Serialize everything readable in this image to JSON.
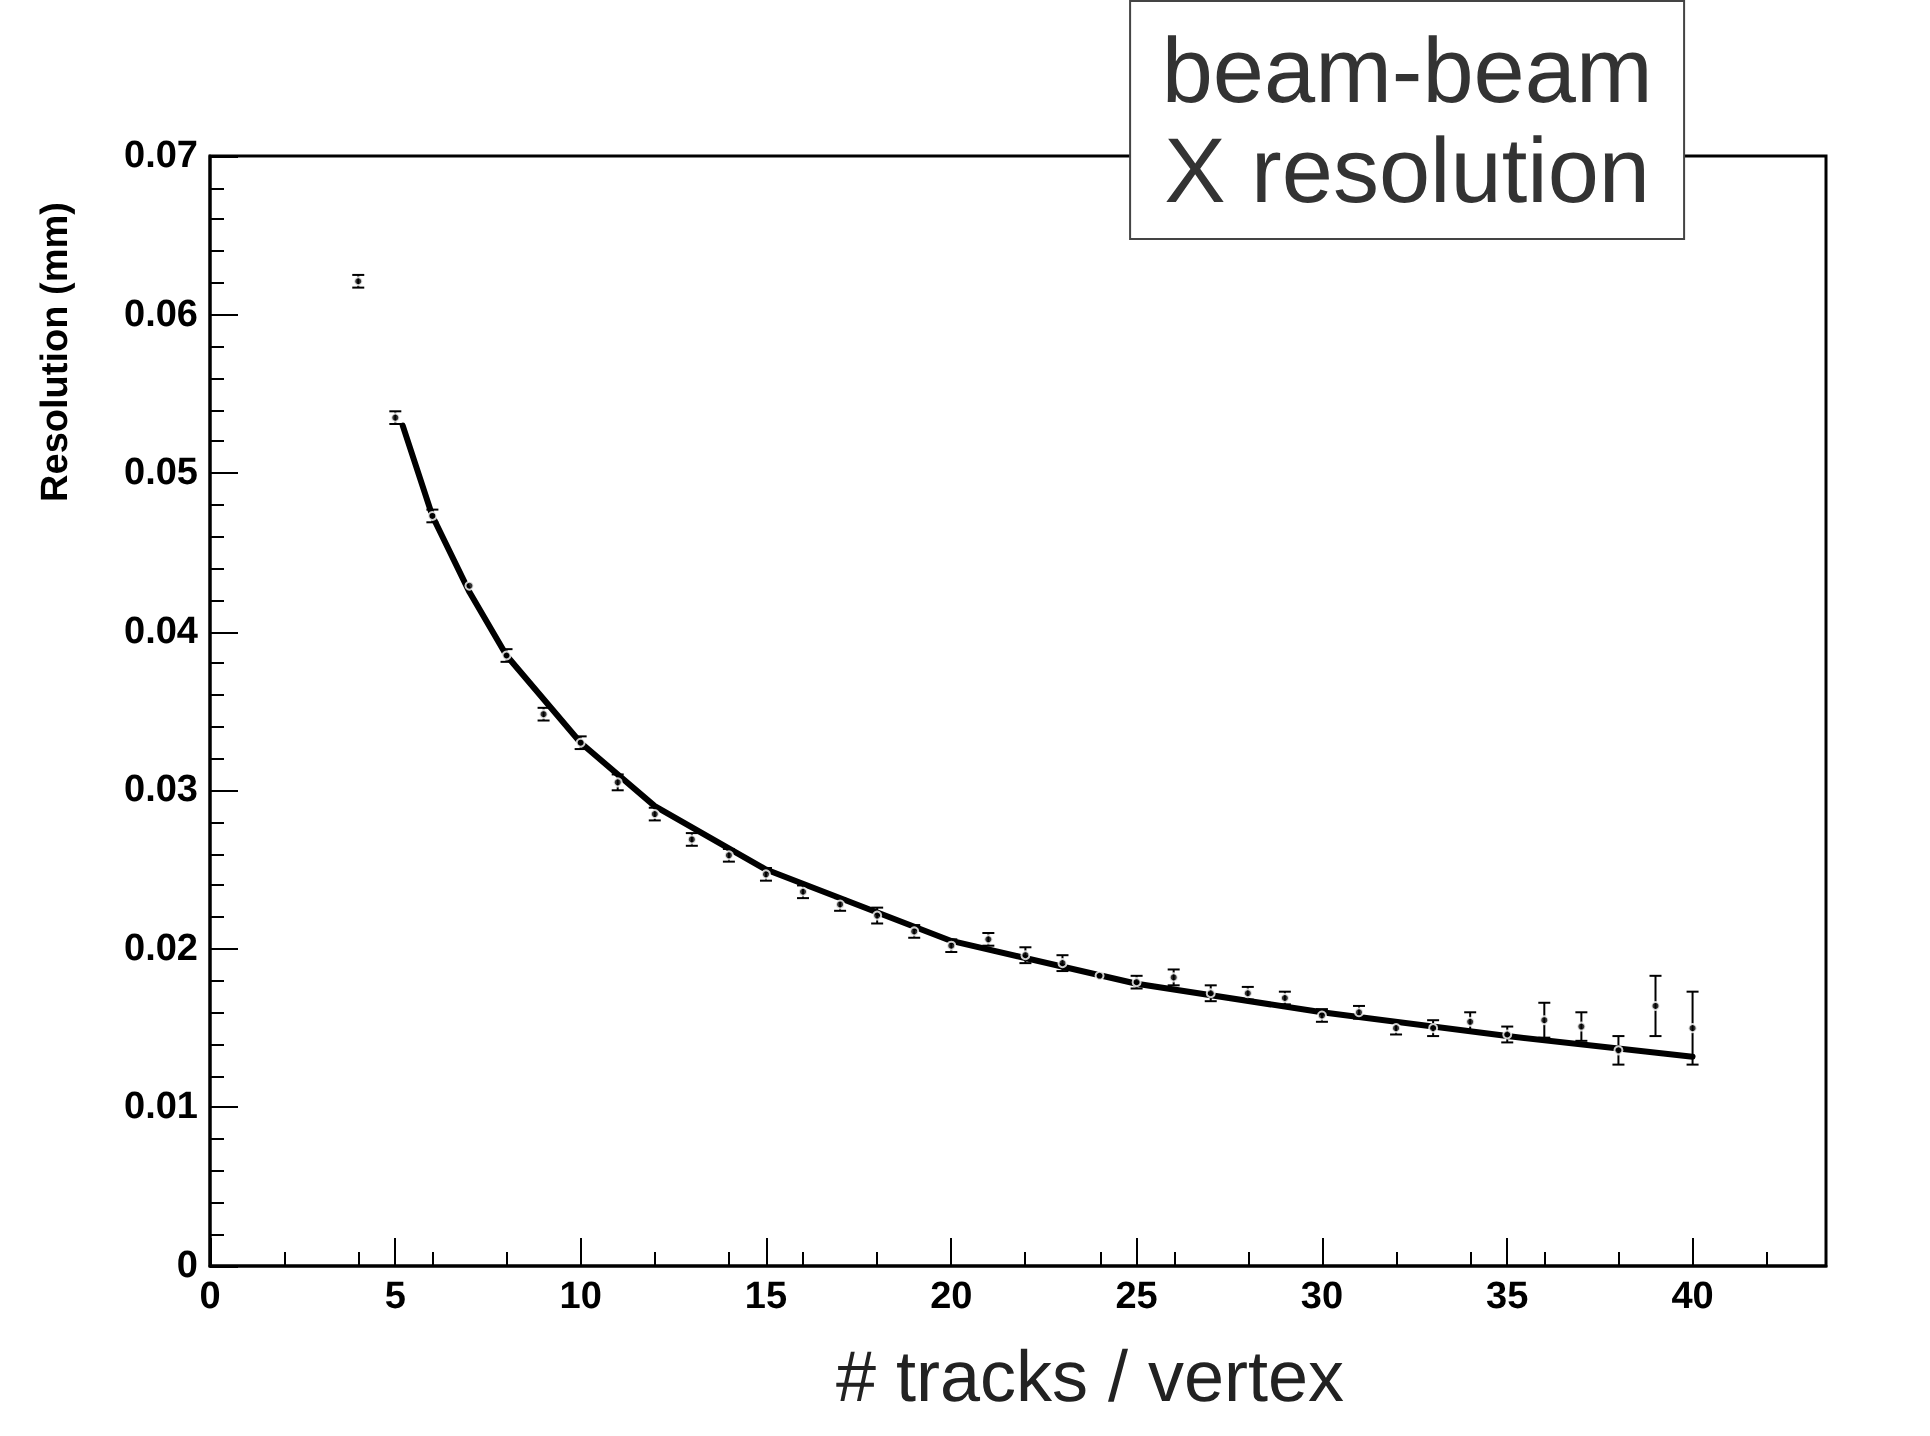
{
  "chart_data": {
    "type": "scatter",
    "title": "beam-beam\nX resolution",
    "xlabel": "# tracks / vertex",
    "ylabel": "Resolution (mm)",
    "xlim": [
      0,
      43.6
    ],
    "xticks": [
      0,
      5,
      10,
      15,
      20,
      25,
      30,
      35,
      40
    ],
    "ylim": [
      0,
      0.07
    ],
    "yticks": [
      0,
      0.01,
      0.02,
      0.03,
      0.04,
      0.05,
      0.06,
      0.07
    ],
    "grid": false,
    "marker": "circle",
    "series": [
      {
        "color": "#000000",
        "x": [
          4,
          5,
          6,
          7,
          8,
          9,
          10,
          11,
          12,
          13,
          14,
          15,
          16,
          17,
          18,
          19,
          20,
          21,
          22,
          23,
          24,
          25,
          26,
          27,
          28,
          29,
          30,
          31,
          32,
          33,
          34,
          35,
          36,
          37,
          38,
          39,
          40
        ],
        "values": [
          0.0621,
          0.0535,
          0.0473,
          0.0429,
          0.0385,
          0.0348,
          0.033,
          0.0305,
          0.0285,
          0.0269,
          0.0259,
          0.0247,
          0.0236,
          0.0228,
          0.0221,
          0.0211,
          0.0202,
          0.0206,
          0.0196,
          0.0191,
          0.0183,
          0.0179,
          0.0182,
          0.0172,
          0.0172,
          0.0169,
          0.0158,
          0.016,
          0.015,
          0.015,
          0.0154,
          0.0146,
          0.0155,
          0.0151,
          0.0136,
          0.0164,
          0.015
        ],
        "errors": [
          0.0004,
          0.0004,
          0.0004,
          null,
          0.0004,
          0.0004,
          0.0004,
          0.0005,
          0.0004,
          0.0004,
          0.0004,
          0.0004,
          0.0004,
          0.0004,
          0.0005,
          0.0004,
          0.0004,
          0.0004,
          0.0005,
          0.0005,
          null,
          0.0004,
          0.0005,
          0.0005,
          0.0004,
          0.0004,
          0.0004,
          0.0004,
          0.0004,
          0.0005,
          0.0006,
          0.0005,
          0.0011,
          0.0009,
          0.0009,
          0.0019,
          0.0023
        ]
      },
      {
        "type": "line",
        "color": "#000000",
        "marker": "none",
        "x": [
          5.2,
          6,
          7,
          8,
          10,
          12,
          15,
          20,
          25,
          30,
          35,
          40
        ],
        "values": [
          0.053,
          0.0473,
          0.0425,
          0.0385,
          0.033,
          0.029,
          0.025,
          0.0205,
          0.0178,
          0.016,
          0.0145,
          0.0132
        ]
      }
    ]
  }
}
